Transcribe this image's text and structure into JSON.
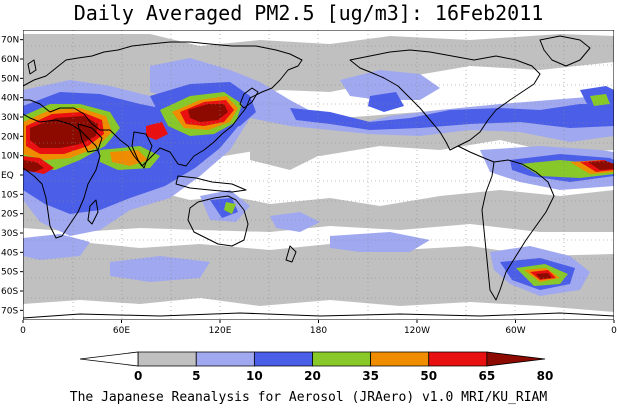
{
  "title": "Daily Averaged PM2.5 [ug/m3]: 16Feb2011",
  "footer": "The Japanese Reanalysis for Aerosol (JRAero) v1.0 MRI/KU_RIAM",
  "lat_labels": [
    "70N",
    "60N",
    "50N",
    "40N",
    "30N",
    "20N",
    "10N",
    "EQ",
    "10S",
    "20S",
    "30S",
    "40S",
    "50S",
    "60S",
    "70S"
  ],
  "lon_labels": [
    "0",
    "60E",
    "120E",
    "180",
    "120W",
    "60W",
    "0"
  ],
  "colorbar": {
    "levels": [
      "0",
      "5",
      "10",
      "20",
      "35",
      "50",
      "65",
      "80"
    ],
    "colors": [
      "#ffffff",
      "#c0c0c0",
      "#a0a8f0",
      "#4a5ee8",
      "#88c828",
      "#f08c00",
      "#e81010",
      "#8c0a00"
    ]
  },
  "map_data": {
    "projection": "equirectangular",
    "lon_range": [
      0,
      360
    ],
    "lat_range": [
      -75,
      75
    ],
    "variable": "PM2.5 daily mean",
    "units": "ug/m3",
    "date": "16Feb2011",
    "levels": [
      0,
      5,
      10,
      20,
      35,
      50,
      65,
      80
    ]
  }
}
